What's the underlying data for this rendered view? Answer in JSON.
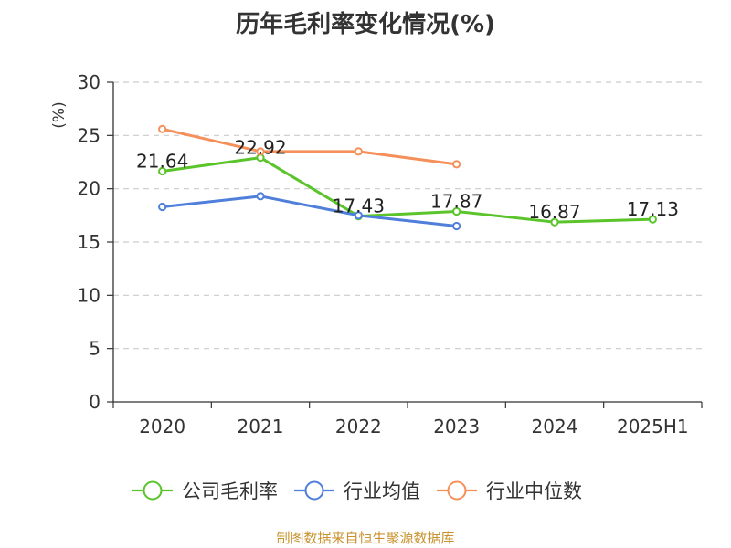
{
  "chart_data": {
    "type": "line",
    "title": "历年毛利率变化情况(%)",
    "ylabel": "(%)",
    "categories": [
      "2020",
      "2021",
      "2022",
      "2023",
      "2024",
      "2025H1"
    ],
    "ylim": [
      0,
      30
    ],
    "yticks": [
      0,
      5,
      10,
      15,
      20,
      25,
      30
    ],
    "grid": true,
    "legend_position": "bottom",
    "series": [
      {
        "name": "公司毛利率",
        "color": "#5ac42a",
        "values": [
          21.64,
          22.92,
          17.43,
          17.87,
          16.87,
          17.13
        ],
        "labels": [
          "21.64",
          "22.92",
          "17.43",
          "17.87",
          "16.87",
          "17.13"
        ]
      },
      {
        "name": "行业均值",
        "color": "#4f7fdb",
        "values": [
          18.3,
          19.3,
          17.5,
          16.5,
          null,
          null
        ]
      },
      {
        "name": "行业中位数",
        "color": "#f5905a",
        "values": [
          25.6,
          23.5,
          23.5,
          22.3,
          null,
          null
        ]
      }
    ]
  },
  "source_note": "制图数据来自恒生聚源数据库",
  "colors": {
    "ylabel": "#e8413c",
    "source_note": "#c8922e",
    "grid": "#cccccc",
    "axis": "#333333"
  }
}
